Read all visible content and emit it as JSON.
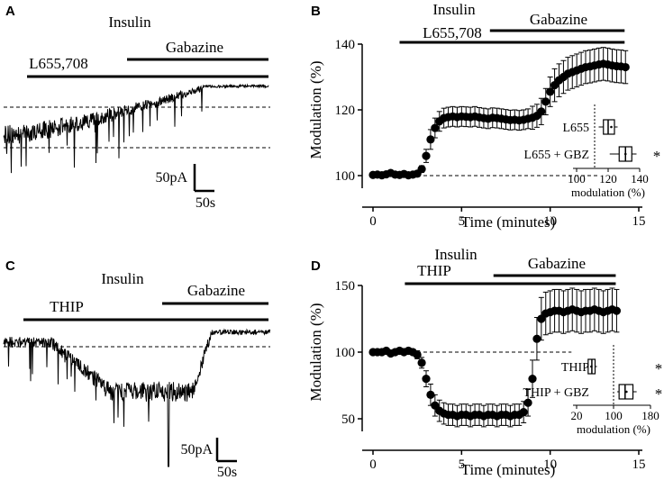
{
  "panels": {
    "A": {
      "letter": "A",
      "insulin": "Insulin",
      "drug1": "L655,708",
      "drug2": "Gabazine",
      "scale_y": "50pA",
      "scale_x": "50s"
    },
    "C": {
      "letter": "C",
      "insulin": "Insulin",
      "drug1": "THIP",
      "drug2": "Gabazine",
      "scale_y": "50pA",
      "scale_x": "50s"
    }
  },
  "chart_data": [
    {
      "panel": "B",
      "type": "scatter",
      "title": "Insulin",
      "drug1_label": "L655,708",
      "drug2_label": "Gabazine",
      "drug1_span_minutes": [
        1.5,
        14.2
      ],
      "drug2_span_minutes": [
        6.6,
        14.2
      ],
      "xlabel": "Time (minutes)",
      "ylabel": "Modulation (%)",
      "xlim": [
        0,
        15
      ],
      "ylim": [
        100,
        140
      ],
      "xticks": [
        "0",
        "5",
        "10",
        "15"
      ],
      "yticks": [
        "100",
        "120",
        "140"
      ],
      "baseline": 100,
      "series": [
        {
          "name": "Modulation",
          "x": [
            0,
            0.25,
            0.5,
            0.75,
            1,
            1.25,
            1.5,
            1.75,
            2,
            2.25,
            2.5,
            2.75,
            3,
            3.25,
            3.5,
            3.75,
            4,
            4.25,
            4.5,
            4.75,
            5,
            5.25,
            5.5,
            5.75,
            6,
            6.25,
            6.5,
            6.75,
            7,
            7.25,
            7.5,
            7.75,
            8,
            8.25,
            8.5,
            8.75,
            9,
            9.25,
            9.5,
            9.75,
            10,
            10.25,
            10.5,
            10.75,
            11,
            11.25,
            11.5,
            11.75,
            12,
            12.25,
            12.5,
            12.75,
            13,
            13.25,
            13.5,
            13.75,
            14,
            14.25
          ],
          "y": [
            100.2,
            100.3,
            100.1,
            100.4,
            100.8,
            100.3,
            100.2,
            100.5,
            100.1,
            100.3,
            100.6,
            102,
            106,
            111,
            114.5,
            116.5,
            117.5,
            117.8,
            118,
            117.8,
            118,
            117.9,
            117.8,
            118,
            117.7,
            117.5,
            117.3,
            117.6,
            117.5,
            117.3,
            117.1,
            116.9,
            117,
            116.8,
            117,
            117.3,
            117.6,
            118.2,
            119.5,
            122.5,
            125.5,
            127.5,
            129,
            130,
            131,
            131.5,
            132,
            132.5,
            133,
            133.2,
            133.5,
            133.8,
            134,
            133.8,
            133.5,
            133.3,
            133.2,
            133
          ],
          "error": [
            0.6,
            0.6,
            0.6,
            0.6,
            0.7,
            0.6,
            0.6,
            0.6,
            0.6,
            0.6,
            0.7,
            1,
            2,
            3,
            3,
            3,
            3,
            3,
            3,
            3,
            3,
            3,
            3,
            3,
            3,
            3,
            3,
            3,
            3,
            3,
            3,
            3,
            3,
            3,
            3,
            3,
            3.5,
            3.5,
            4,
            4,
            4.5,
            5,
            5,
            5,
            5,
            5,
            5,
            5,
            5,
            5,
            5,
            5,
            5,
            5,
            5,
            5,
            5,
            5
          ]
        }
      ],
      "inset": {
        "rows": [
          "L655",
          "L655 + GBZ"
        ],
        "significance": [
          "",
          "*"
        ],
        "xlabel": "modulation (%)",
        "xticks": [
          "100",
          "120",
          "140"
        ],
        "xlim": [
          100,
          140
        ],
        "boxes": [
          {
            "min": 114,
            "q1": 117,
            "median": 120,
            "q3": 124,
            "max": 126,
            "mean": 122
          },
          {
            "min": 121,
            "q1": 127,
            "median": 131,
            "q3": 135,
            "max": 138,
            "mean": 131
          }
        ]
      }
    },
    {
      "panel": "D",
      "type": "scatter",
      "title": "Insulin",
      "drug1_label": "THIP",
      "drug2_label": "Gabazine",
      "drug1_span_minutes": [
        1.8,
        13.7
      ],
      "drug2_span_minutes": [
        6.8,
        13.7
      ],
      "xlabel": "Time (minutes)",
      "ylabel": "Modulation (%)",
      "xlim": [
        0,
        15
      ],
      "ylim": [
        50,
        150
      ],
      "xticks": [
        "0",
        "5",
        "10",
        "15"
      ],
      "yticks": [
        "50",
        "100",
        "150"
      ],
      "baseline": 100,
      "series": [
        {
          "name": "Modulation",
          "x": [
            0,
            0.25,
            0.5,
            0.75,
            1,
            1.25,
            1.5,
            1.75,
            2,
            2.25,
            2.5,
            2.75,
            3,
            3.25,
            3.5,
            3.75,
            4,
            4.25,
            4.5,
            4.75,
            5,
            5.25,
            5.5,
            5.75,
            6,
            6.25,
            6.5,
            6.75,
            7,
            7.25,
            7.5,
            7.75,
            8,
            8.25,
            8.5,
            8.75,
            9,
            9.25,
            9.5,
            9.75,
            10,
            10.25,
            10.5,
            10.75,
            11,
            11.25,
            11.5,
            11.75,
            12,
            12.25,
            12.5,
            12.75,
            13,
            13.25,
            13.5,
            13.75
          ],
          "y": [
            100,
            100,
            100,
            101,
            99,
            100,
            101,
            100,
            101,
            100,
            98,
            92,
            80,
            68,
            60,
            56,
            54,
            53,
            53,
            52,
            53,
            53,
            52,
            53,
            53,
            52,
            53,
            53,
            52,
            53,
            53,
            52,
            53,
            53,
            55,
            62,
            80,
            110,
            125,
            129,
            130,
            131,
            131,
            130,
            131,
            132,
            131,
            130,
            131,
            131,
            132,
            131,
            130,
            131,
            132,
            131
          ],
          "error": [
            2,
            2,
            2,
            2,
            2,
            2,
            2,
            2,
            2,
            2,
            3,
            4,
            6,
            8,
            8,
            8,
            8,
            8,
            8,
            8,
            8,
            8,
            8,
            8,
            8,
            8,
            8,
            8,
            8,
            8,
            8,
            8,
            8,
            8,
            8,
            10,
            14,
            16,
            16,
            16,
            16,
            16,
            16,
            16,
            16,
            16,
            16,
            16,
            16,
            16,
            16,
            16,
            16,
            16,
            16,
            16
          ]
        }
      ],
      "inset": {
        "rows": [
          "THIP",
          "THIP + GBZ"
        ],
        "significance": [
          "*",
          "*"
        ],
        "xlabel": "modulation (%)",
        "xticks": [
          "20",
          "100",
          "180"
        ],
        "xlim": [
          20,
          180
        ],
        "boxes": [
          {
            "min": 42,
            "q1": 45,
            "median": 53,
            "q3": 60,
            "max": 64,
            "mean": 52
          },
          {
            "min": 108,
            "q1": 112,
            "median": 125,
            "q3": 142,
            "max": 150,
            "mean": 128
          }
        ]
      }
    }
  ]
}
